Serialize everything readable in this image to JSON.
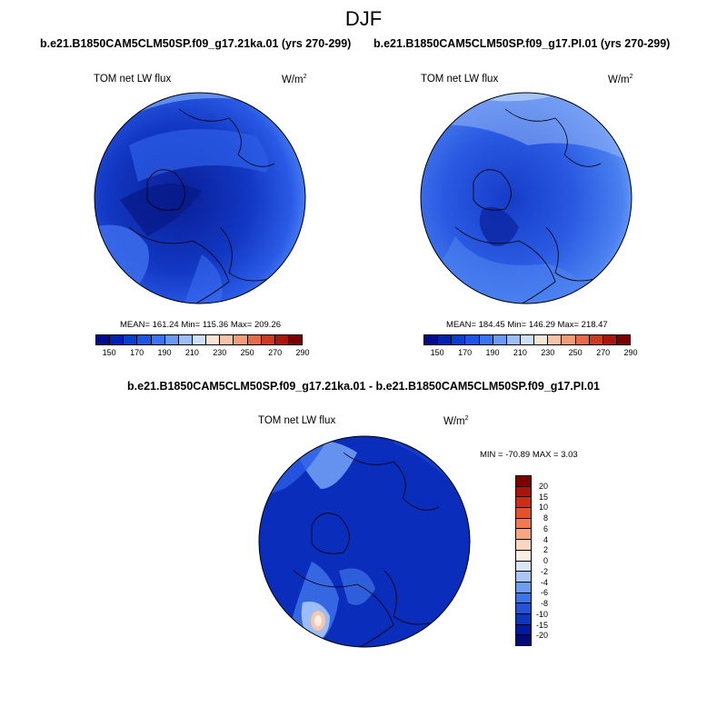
{
  "title": "DJF",
  "panels": [
    {
      "title": "b.e21.B1850CAM5CLM50SP.f09_g17.21ka.01 (yrs 270-299)",
      "left_label": "TOM net LW flux",
      "units_base": "W/m",
      "units_exp": "2",
      "stats": "MEAN= 161.24  Min= 115.36  Max= 209.26"
    },
    {
      "title": "b.e21.B1850CAM5CLM50SP.f09_g17.PI.01 (yrs 270-299)",
      "left_label": "TOM net LW flux",
      "units_base": "W/m",
      "units_exp": "2",
      "stats": "MEAN= 184.45  Min= 146.29  Max= 218.47"
    }
  ],
  "diff": {
    "title": "b.e21.B1850CAM5CLM50SP.f09_g17.21ka.01 - b.e21.B1850CAM5CLM50SP.f09_g17.PI.01",
    "left_label": "TOM net LW flux",
    "units_base": "W/m",
    "units_exp": "2",
    "stats": "MIN = -70.89 MAX =   3.03"
  },
  "abs_colorbar": {
    "colors": [
      "#000a8c",
      "#0021b0",
      "#0a3ccf",
      "#1c55e6",
      "#3b74f2",
      "#6a98f5",
      "#9dbdf7",
      "#cce0fb",
      "#fde5d5",
      "#f9c3a8",
      "#f29b78",
      "#e66a4a",
      "#cc3a22",
      "#a8150c",
      "#7a0000"
    ],
    "labels": [
      "150",
      "170",
      "190",
      "210",
      "230",
      "250",
      "270",
      "290"
    ]
  },
  "diff_colorbar": {
    "colors": [
      "#7a0000",
      "#a8150c",
      "#cc2e18",
      "#e6502c",
      "#f27a52",
      "#f7a780",
      "#fcd6be",
      "#fbeee4",
      "#d8e6fa",
      "#a9c6f5",
      "#6e9cf0",
      "#3f74e8",
      "#2453d6",
      "#0e35bb",
      "#031a9c",
      "#000a78"
    ],
    "labels": [
      "20",
      "15",
      "10",
      "8",
      "6",
      "4",
      "2",
      "0",
      "-2",
      "-4",
      "-6",
      "-8",
      "-10",
      "-15",
      "-20"
    ]
  }
}
